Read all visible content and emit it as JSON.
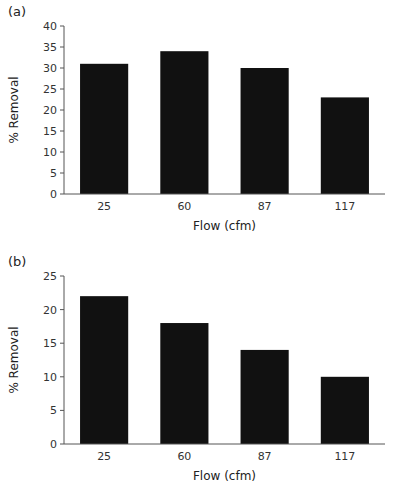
{
  "chart_data": [
    {
      "type": "bar",
      "title": "(a)",
      "categories": [
        "25",
        "60",
        "87",
        "117"
      ],
      "values": [
        31,
        34,
        30,
        23
      ],
      "color": "#111111",
      "xlabel": "Flow (cfm)",
      "ylabel": "% Removal",
      "ylim": [
        0,
        40
      ],
      "yticks": [
        0,
        5,
        10,
        15,
        20,
        25,
        30,
        35,
        40
      ]
    },
    {
      "type": "bar",
      "title": "(b)",
      "categories": [
        "25",
        "60",
        "87",
        "117"
      ],
      "values": [
        22,
        18,
        14,
        10
      ],
      "color": "#111111",
      "xlabel": "Flow (cfm)",
      "ylabel": "% Removal",
      "ylim": [
        0,
        25
      ],
      "yticks": [
        0,
        5,
        10,
        15,
        20,
        25
      ]
    }
  ]
}
